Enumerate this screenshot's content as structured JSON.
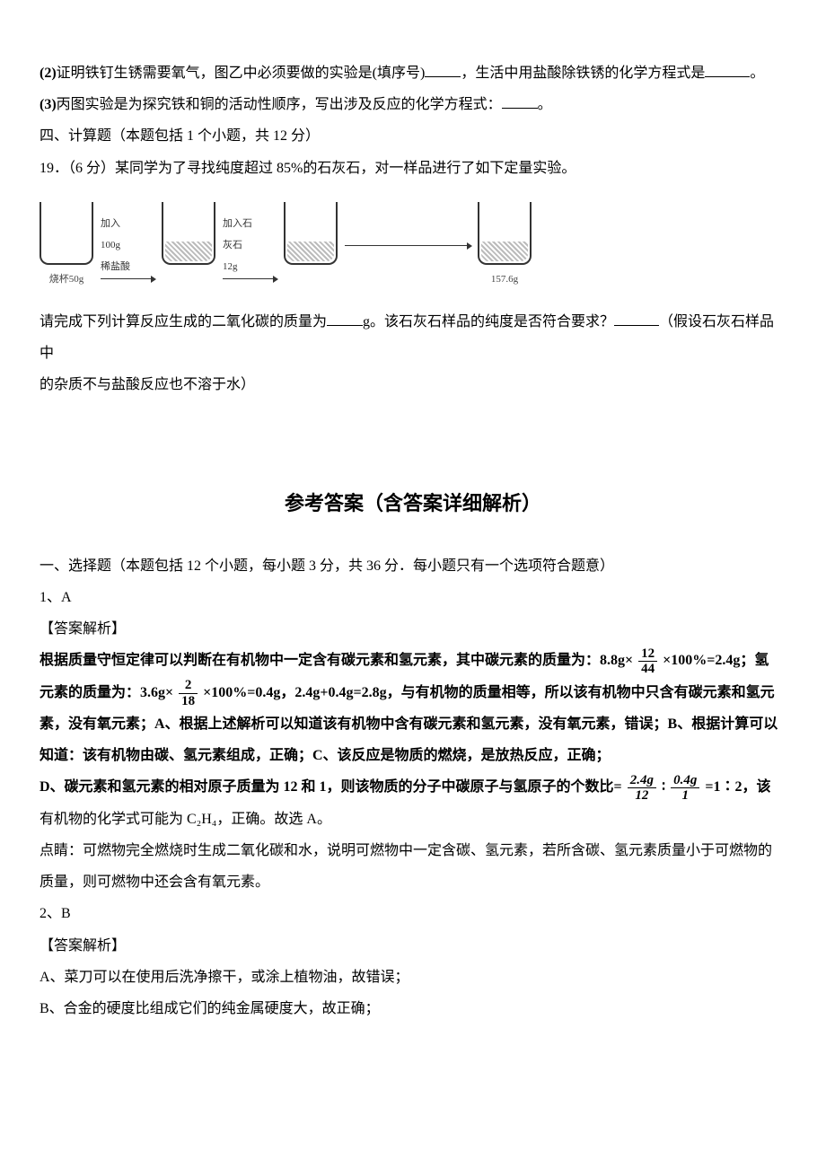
{
  "q2_prefix": "(2)",
  "q2_text": "证明铁钉生锈需要氧气，图乙中必须要做的实验是(填序号)",
  "q2_tail": "，生活中用盐酸除铁锈的化学方程式是",
  "q2_period": "。",
  "q3_prefix": "(3)",
  "q3_text": "丙图实验是为探究铁和铜的活动性顺序，写出涉及反应的化学方程式：",
  "q3_period": "。",
  "sec4_title": "四、计算题（本题包括 1 个小题，共 12 分）",
  "q19_line": "19．（6 分）某同学为了寻找纯度超过 85%的石灰石，对一样品进行了如下定量实验。",
  "diagram": {
    "beaker1_label": "烧杯50g",
    "arrow1_top": "加入",
    "arrow1_mid": "100g",
    "arrow1_bot": "稀盐酸",
    "arrow2_top": "加入石",
    "arrow2_mid": "灰石",
    "arrow2_bot": "12g",
    "beaker4_label": "157.6g"
  },
  "q19_follow_a": "请完成下列计算反应生成的二氧化碳的质量为",
  "q19_follow_b": "g。该石灰石样品的纯度是否符合要求？",
  "q19_follow_c": "（假设石灰石样品中",
  "q19_follow_line2": "的杂质不与盐酸反应也不溶于水）",
  "answers_title": "参考答案（含答案详细解析）",
  "sec1_title": "一、选择题（本题包括 12 个小题，每小题 3 分，共 36 分．每小题只有一个选项符合题意）",
  "a1_label": "1、A",
  "ans_label": "【答案解析】",
  "a1_line1_a": "根据质量守恒定律可以判断在有机物中一定含有碳元素和氢元素，其中碳元素的质量为：8.8g×",
  "frac1_num": "12",
  "frac1_den": "44",
  "a1_line1_b": "×100%=2.4g；氢",
  "a1_line2_a": "元素的质量为：3.6g×",
  "frac2_num": "2",
  "frac2_den": "18",
  "a1_line2_b": "×100%=0.4g，2.4g+0.4g=2.8g，与有机物的质量相等，所以该有机物中只含有碳元素和氢元",
  "a1_line3": "素，没有氧元素；A、根据上述解析可以知道该有机物中含有碳元素和氢元素，没有氧元素，错误；B、根据计算可以",
  "a1_line4": "知道：该有机物由碳、氢元素组成，正确；C、该反应是物质的燃烧，是放热反应，正确；",
  "a1_line5_a": "D、碳元素和氢元素的相对原子质量为 12 和 1，则该物质的分子中碳原子与氢原子的个数比=",
  "frac3_num": "2.4g",
  "frac3_den": "12",
  "colon": "∶",
  "frac4_num": "0.4g",
  "frac4_den": "1",
  "a1_line5_b": "=1∶2，该",
  "a1_line6": "有机物的化学式可能为 C₂H₄，正确。故选 A。",
  "a1_note1": "点睛：可燃物完全燃烧时生成二氧化碳和水，说明可燃物中一定含碳、氢元素，若所含碳、氢元素质量小于可燃物的",
  "a1_note2": "质量，则可燃物中还会含有氧元素。",
  "a2_label": "2、B",
  "a2_lineA": "A、菜刀可以在使用后洗净擦干，或涂上植物油，故错误；",
  "a2_lineB": "B、合金的硬度比组成它们的纯金属硬度大，故正确；"
}
